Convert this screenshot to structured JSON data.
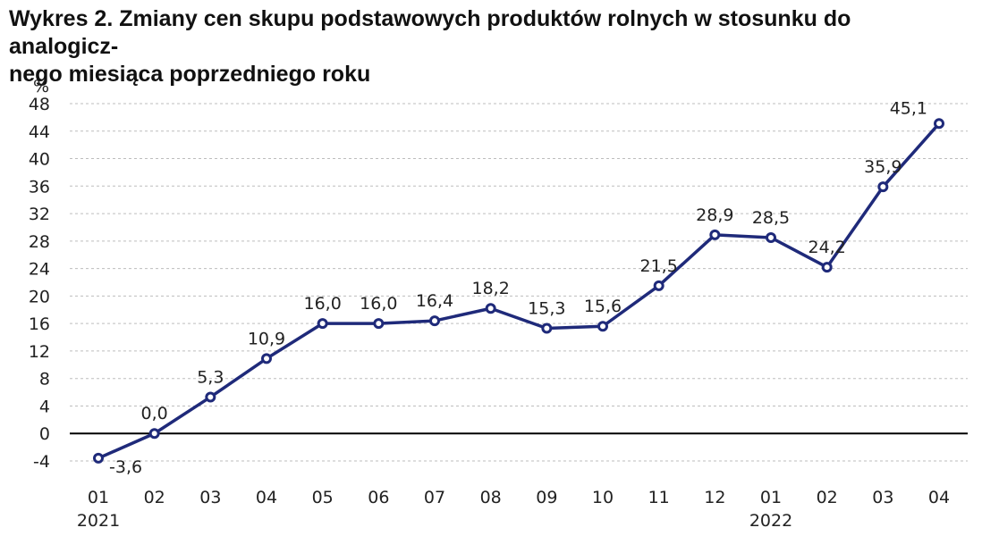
{
  "title": "Wykres 2. Zmiany cen skupu podstawowych produktów rolnych w stosunku do analogicz-nego miesiąca poprzedniego roku",
  "title_lines": [
    "Wykres 2. Zmiany cen skupu podstawowych produktów rolnych w stosunku do analogicz-",
    "nego miesiąca poprzedniego roku"
  ],
  "chart_data": {
    "type": "line",
    "title": "Wykres 2. Zmiany cen skupu podstawowych produktów rolnych w stosunku do analogicz-nego miesiąca poprzedniego roku",
    "xlabel": "",
    "ylabel": "%",
    "categories": [
      "01",
      "02",
      "03",
      "04",
      "05",
      "06",
      "07",
      "08",
      "09",
      "10",
      "11",
      "12",
      "01",
      "02",
      "03",
      "04"
    ],
    "years": [
      {
        "label": "2021",
        "index": 0
      },
      {
        "label": "2022",
        "index": 12
      }
    ],
    "series": [
      {
        "values": [
          -3.6,
          0.0,
          5.3,
          10.9,
          16.0,
          16.0,
          16.4,
          18.2,
          15.3,
          15.6,
          21.5,
          28.9,
          28.5,
          24.2,
          35.9,
          45.1
        ]
      }
    ],
    "data_labels": [
      "-3,6",
      "0,0",
      "5,3",
      "10,9",
      "16,0",
      "16,0",
      "16,4",
      "18,2",
      "15,3",
      "15,6",
      "21,5",
      "28,9",
      "28,5",
      "24,2",
      "35,9",
      "45,1"
    ],
    "yticks": [
      -4,
      0,
      4,
      8,
      12,
      16,
      20,
      24,
      28,
      32,
      36,
      40,
      44,
      48
    ],
    "ylim": [
      -4,
      48
    ],
    "grid": true,
    "line_color": "#1f2a7a",
    "grid_color": "#bdbdbd",
    "axis_color": "#000000"
  }
}
